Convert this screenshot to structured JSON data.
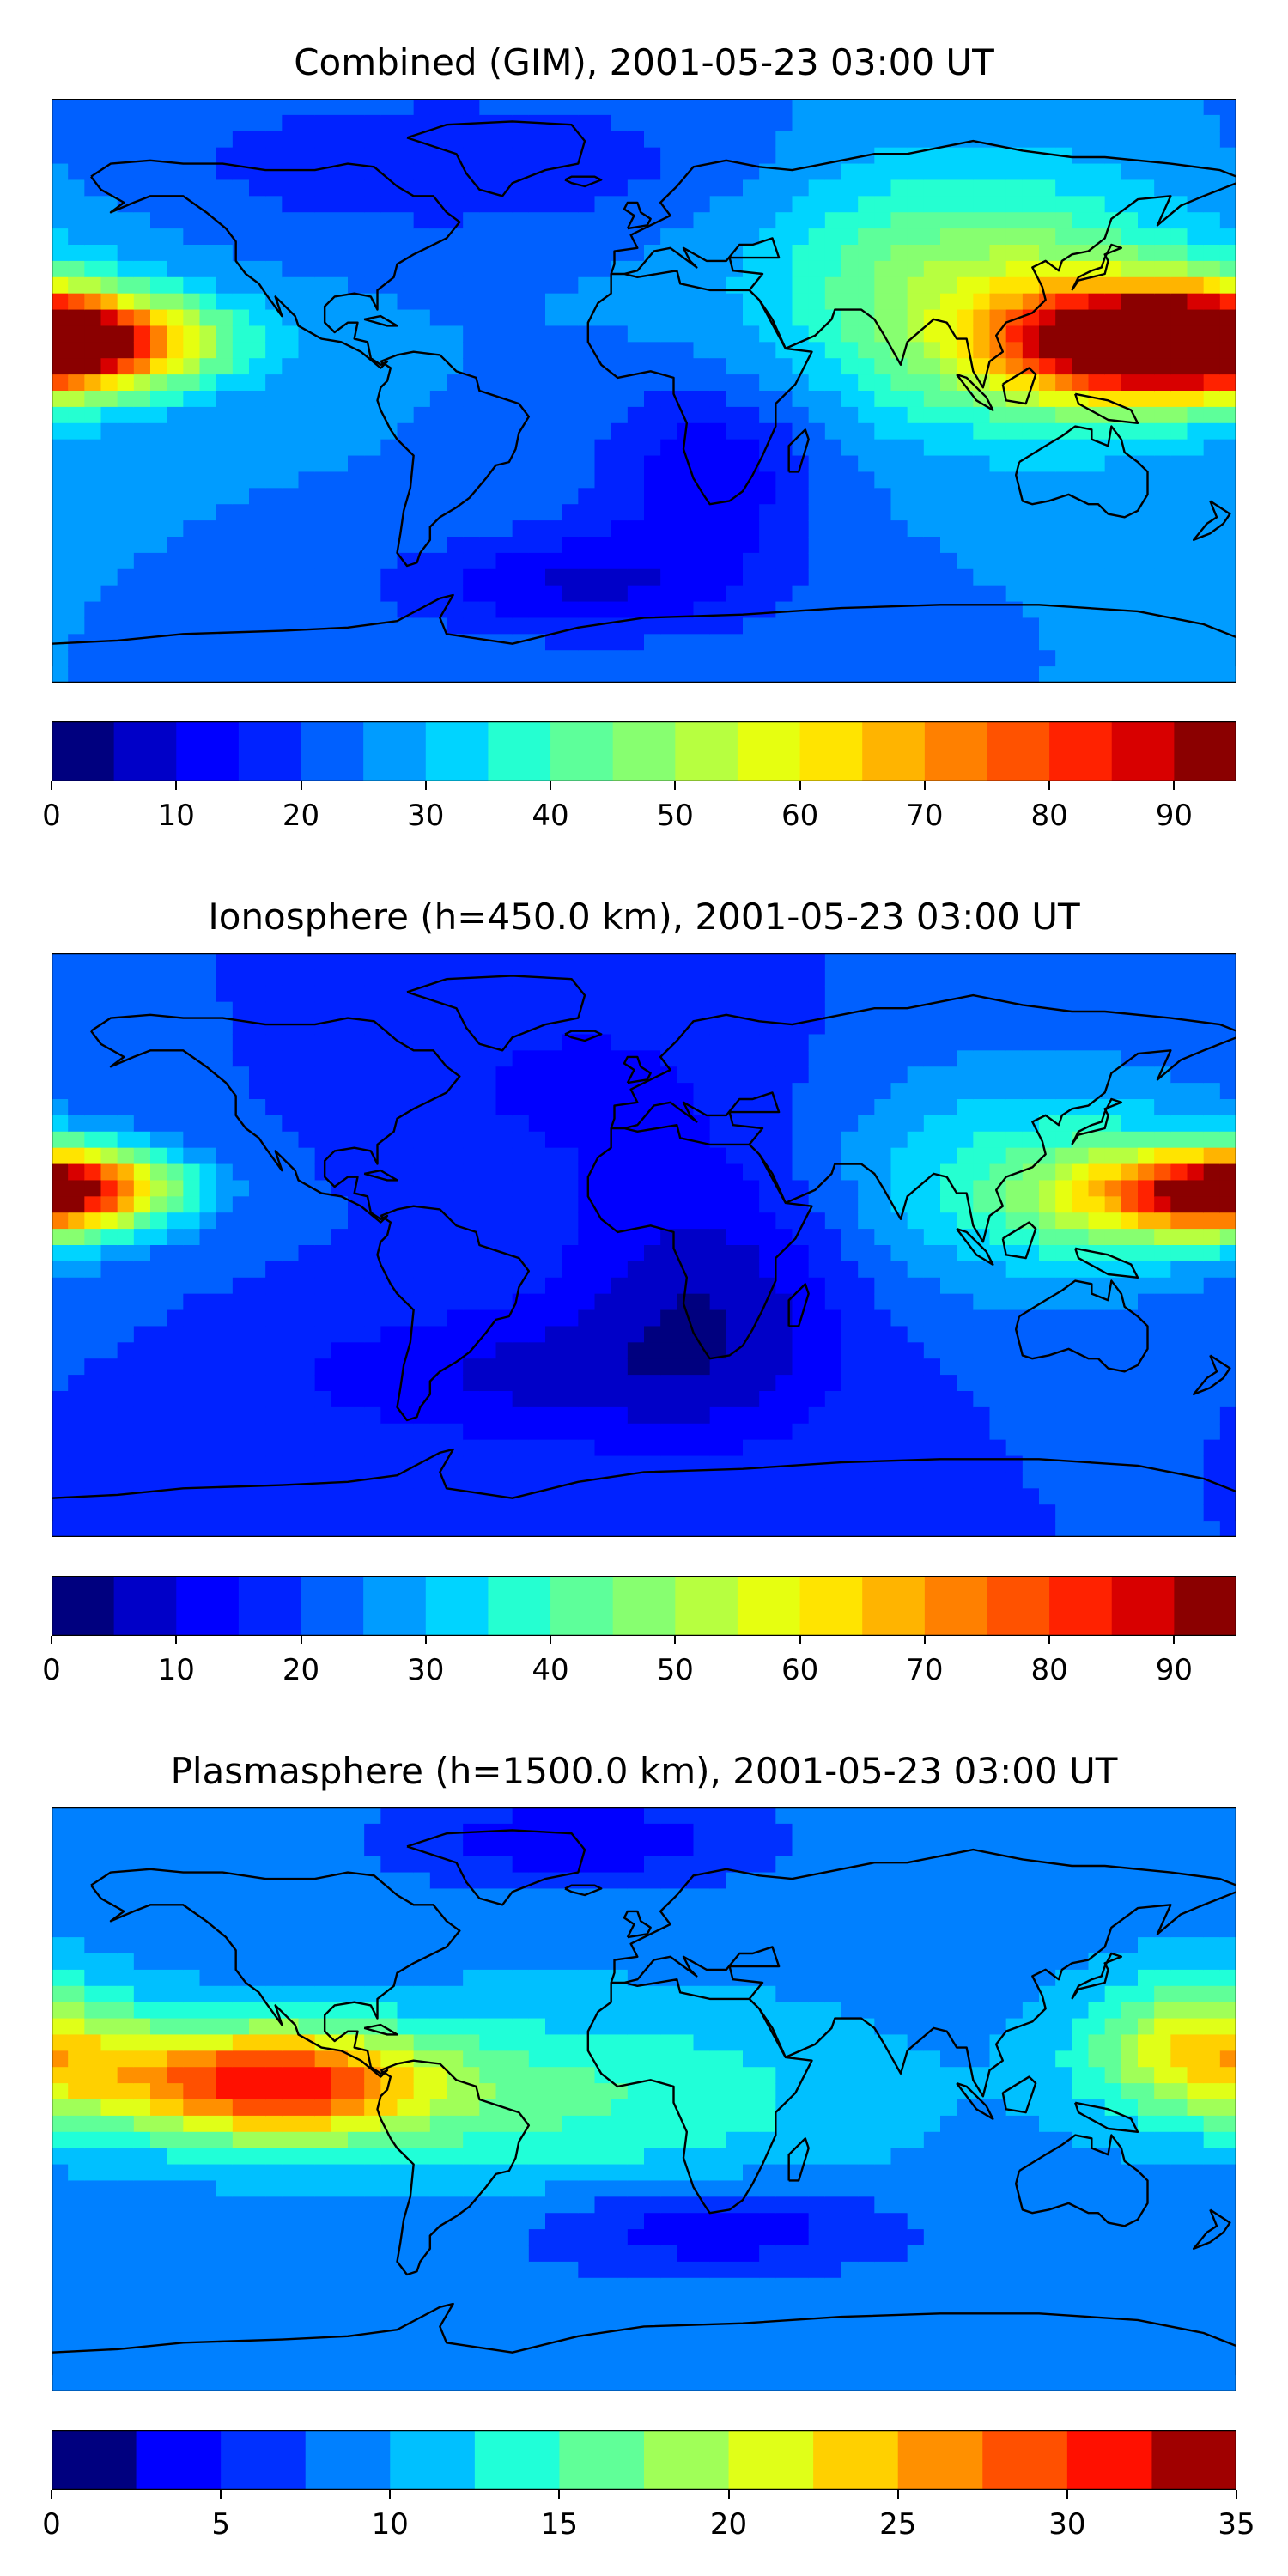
{
  "panels": [
    {
      "title": "Combined (GIM), 2001-05-23 03:00 UT",
      "colormap": [
        "#00007f",
        "#0000c8",
        "#0000ff",
        "#0022ff",
        "#0060ff",
        "#009cff",
        "#00d4ff",
        "#25ffd1",
        "#5dff9a",
        "#87ff70",
        "#b7ff40",
        "#e6ff10",
        "#ffe400",
        "#ffb400",
        "#ff8000",
        "#ff5200",
        "#ff2200",
        "#d80000",
        "#8b0000"
      ],
      "colorbar": {
        "min": 0,
        "max": 95,
        "ticks": [
          0,
          10,
          20,
          30,
          40,
          50,
          60,
          70,
          80,
          90
        ]
      },
      "field": {
        "base": 25,
        "lobes": [
          {
            "lon": -175,
            "lat": 15,
            "dlon": 30,
            "dlat": 10,
            "amp": 62
          },
          {
            "lon": 150,
            "lat": 15,
            "dlon": 30,
            "dlat": 12,
            "amp": 58
          },
          {
            "lon": 120,
            "lat": 20,
            "dlon": 45,
            "dlat": 25,
            "amp": 20
          },
          {
            "lon": 90,
            "lat": 40,
            "dlon": 40,
            "dlat": 25,
            "amp": 12
          },
          {
            "lon": 20,
            "lat": -25,
            "dlon": 25,
            "dlat": 20,
            "amp": -14
          },
          {
            "lon": -20,
            "lat": -60,
            "dlon": 40,
            "dlat": 12,
            "amp": -15
          },
          {
            "lon": -60,
            "lat": 70,
            "dlon": 60,
            "dlat": 15,
            "amp": -10
          }
        ]
      }
    },
    {
      "title": "Ionosphere  (h=450.0 km), 2001-05-23 03:00 UT",
      "colormap": [
        "#00007f",
        "#0000c8",
        "#0000ff",
        "#0022ff",
        "#0060ff",
        "#009cff",
        "#00d4ff",
        "#25ffd1",
        "#5dff9a",
        "#87ff70",
        "#b7ff40",
        "#e6ff10",
        "#ffe400",
        "#ffb400",
        "#ff8000",
        "#ff5200",
        "#ff2200",
        "#d80000",
        "#8b0000"
      ],
      "colorbar": {
        "min": 0,
        "max": 95,
        "ticks": [
          0,
          10,
          20,
          30,
          40,
          50,
          60,
          70,
          80,
          90
        ]
      },
      "field": {
        "base": 20,
        "lobes": [
          {
            "lon": -175,
            "lat": 18,
            "dlon": 22,
            "dlat": 8,
            "amp": 45
          },
          {
            "lon": 165,
            "lat": 15,
            "dlon": 30,
            "dlat": 10,
            "amp": 40
          },
          {
            "lon": 120,
            "lat": 20,
            "dlon": 45,
            "dlat": 25,
            "amp": 18
          },
          {
            "lon": 20,
            "lat": -15,
            "dlon": 30,
            "dlat": 30,
            "amp": -14
          },
          {
            "lon": -40,
            "lat": -40,
            "dlon": 50,
            "dlat": 15,
            "amp": -10
          },
          {
            "lon": -20,
            "lat": 50,
            "dlon": 40,
            "dlat": 20,
            "amp": -6
          }
        ]
      }
    },
    {
      "title": "Plasmasphere (h=1500.0 km), 2001-05-23 03:00 UT",
      "colormap": [
        "#00007f",
        "#0000ff",
        "#0030ff",
        "#0080ff",
        "#00c0ff",
        "#20ffd8",
        "#60ff98",
        "#a0ff58",
        "#e0ff18",
        "#ffd000",
        "#ff9000",
        "#ff5000",
        "#ff1000",
        "#a00000"
      ],
      "colorbar": {
        "min": 0,
        "max": 35,
        "ticks": [
          0,
          5,
          10,
          15,
          20,
          25,
          30,
          35
        ]
      },
      "field": {
        "base": 9,
        "lobes": [
          {
            "lon": -115,
            "lat": 5,
            "dlon": 35,
            "dlat": 12,
            "amp": 22
          },
          {
            "lon": 170,
            "lat": 15,
            "dlon": 25,
            "dlat": 15,
            "amp": 14
          },
          {
            "lon": -20,
            "lat": 0,
            "dlon": 60,
            "dlat": 20,
            "amp": 6
          },
          {
            "lon": 20,
            "lat": -40,
            "dlon": 40,
            "dlat": 10,
            "amp": -6
          },
          {
            "lon": -20,
            "lat": 80,
            "dlon": 40,
            "dlat": 10,
            "amp": -6
          }
        ]
      }
    }
  ]
}
